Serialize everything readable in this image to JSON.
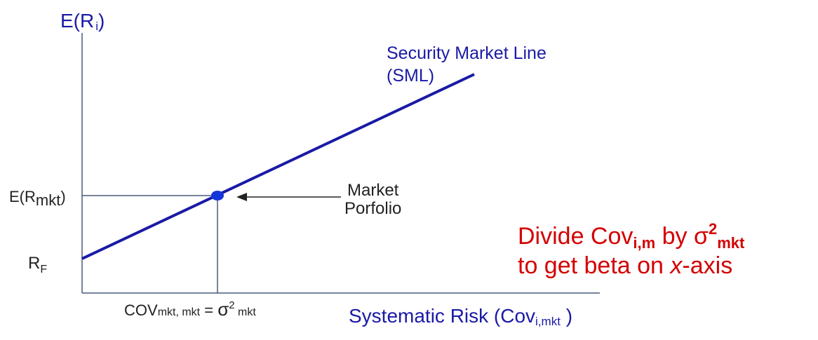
{
  "labels": {
    "y_axis": {
      "main": "E(R",
      "sub": "i",
      "close": ")"
    },
    "sml": {
      "line1": "Security Market Line",
      "line2": "(SML)"
    },
    "er_mkt": {
      "main": "E(R",
      "sub": "mkt",
      "close": ")"
    },
    "rf": {
      "main": "R",
      "sub": "F"
    },
    "market_portfolio": {
      "line1": "Market",
      "line2": "Porfolio"
    },
    "x_tick": {
      "cov": "COV",
      "cov_sub": "mkt, mkt",
      "eq": " = ",
      "sigma": "σ",
      "sup": "2",
      "sigma_sub": " mkt"
    },
    "x_axis": {
      "main": "Systematic Risk (Cov",
      "sub": "i,mkt",
      "close": " )"
    }
  },
  "note": {
    "w1": "Divide Cov",
    "sub1": "i,m",
    "w2": " by σ",
    "sup": "2",
    "sub2": "mkt",
    "line2_a": "to get beta on ",
    "line2_i": "x",
    "line2_b": "-axis"
  },
  "colors": {
    "line": "#1a1aa6",
    "axes": "#4a5a7a",
    "note": "#d40000",
    "marker": "#1535d9"
  }
}
